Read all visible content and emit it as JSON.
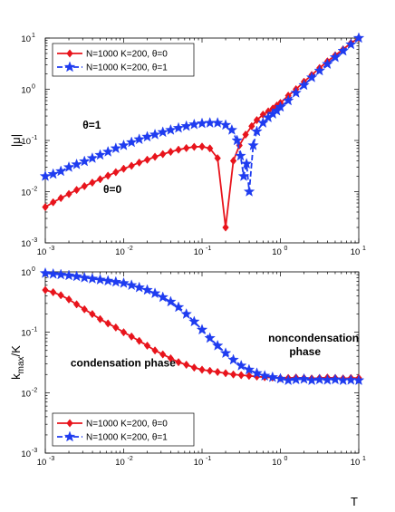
{
  "chart_data": [
    {
      "type": "line",
      "xscale": "log",
      "yscale": "log",
      "xlim": [
        0.001,
        10
      ],
      "ylim": [
        0.001,
        10
      ],
      "xlabel": "",
      "ylabel": "|μ|",
      "grid": false,
      "legend_position": "top-left",
      "x_ticks": [
        {
          "b": "10",
          "e": "-3"
        },
        {
          "b": "10",
          "e": "-2"
        },
        {
          "b": "10",
          "e": "-1"
        },
        {
          "b": "10",
          "e": "0"
        },
        {
          "b": "10",
          "e": "1"
        }
      ],
      "y_ticks": [
        {
          "b": "10",
          "e": "-3"
        },
        {
          "b": "10",
          "e": "-2"
        },
        {
          "b": "10",
          "e": "-1"
        },
        {
          "b": "10",
          "e": "0"
        },
        {
          "b": "10",
          "e": "1"
        }
      ],
      "annotations": [
        {
          "text": "θ=1",
          "x": 0.003,
          "y": 0.17
        },
        {
          "text": "θ=0",
          "x": 0.0055,
          "y": 0.0095
        }
      ],
      "series": [
        {
          "name": "N=1000 K=200, θ=0",
          "color": "#e8141c",
          "marker": "diamond",
          "x": [
            0.001,
            0.00126,
            0.00158,
            0.002,
            0.00251,
            0.00316,
            0.00398,
            0.00501,
            0.00631,
            0.00794,
            0.01,
            0.0126,
            0.0158,
            0.02,
            0.0251,
            0.0316,
            0.0398,
            0.0501,
            0.0631,
            0.0794,
            0.1,
            0.126,
            0.158,
            0.2,
            0.251,
            0.3,
            0.36,
            0.43,
            0.5,
            0.6,
            0.7,
            0.8,
            0.9,
            1.0,
            1.26,
            1.58,
            2.0,
            2.51,
            3.16,
            3.98,
            5.01,
            6.31,
            7.94,
            10
          ],
          "y": [
            0.005,
            0.0062,
            0.0075,
            0.009,
            0.0108,
            0.0128,
            0.015,
            0.0175,
            0.0205,
            0.024,
            0.028,
            0.032,
            0.037,
            0.042,
            0.048,
            0.054,
            0.06,
            0.066,
            0.071,
            0.075,
            0.076,
            0.07,
            0.045,
            0.002,
            0.04,
            0.08,
            0.13,
            0.19,
            0.25,
            0.32,
            0.37,
            0.42,
            0.48,
            0.54,
            0.75,
            1.0,
            1.4,
            1.9,
            2.6,
            3.5,
            4.6,
            6.0,
            8.0,
            10
          ]
        },
        {
          "name": "N=1000 K=200, θ=1",
          "color": "#1f3cf0",
          "marker": "star",
          "x": [
            0.001,
            0.00126,
            0.00158,
            0.002,
            0.00251,
            0.00316,
            0.00398,
            0.00501,
            0.00631,
            0.00794,
            0.01,
            0.0126,
            0.0158,
            0.02,
            0.0251,
            0.0316,
            0.0398,
            0.0501,
            0.0631,
            0.0794,
            0.1,
            0.126,
            0.158,
            0.2,
            0.24,
            0.28,
            0.31,
            0.34,
            0.37,
            0.4,
            0.45,
            0.5,
            0.6,
            0.7,
            0.8,
            0.9,
            1.0,
            1.26,
            1.58,
            2.0,
            2.51,
            3.16,
            3.98,
            5.01,
            6.31,
            7.94,
            10
          ],
          "y": [
            0.02,
            0.022,
            0.025,
            0.03,
            0.034,
            0.039,
            0.045,
            0.052,
            0.06,
            0.07,
            0.08,
            0.092,
            0.105,
            0.118,
            0.13,
            0.145,
            0.16,
            0.175,
            0.19,
            0.205,
            0.215,
            0.22,
            0.22,
            0.2,
            0.16,
            0.1,
            0.05,
            0.02,
            0.035,
            0.01,
            0.08,
            0.15,
            0.22,
            0.28,
            0.33,
            0.38,
            0.45,
            0.6,
            0.85,
            1.2,
            1.7,
            2.3,
            3.1,
            4.2,
            5.6,
            7.5,
            10
          ]
        }
      ]
    },
    {
      "type": "line",
      "xscale": "log",
      "yscale": "log",
      "xlim": [
        0.001,
        10
      ],
      "ylim": [
        0.001,
        1
      ],
      "xlabel": "T",
      "ylabel_main": "k",
      "ylabel_sub": "max",
      "ylabel_tail": "/K",
      "grid": false,
      "legend_position": "bottom-left",
      "x_ticks": [
        {
          "b": "10",
          "e": "-3"
        },
        {
          "b": "10",
          "e": "-2"
        },
        {
          "b": "10",
          "e": "-1"
        },
        {
          "b": "10",
          "e": "0"
        },
        {
          "b": "10",
          "e": "1"
        }
      ],
      "y_ticks": [
        {
          "b": "10",
          "e": "-3"
        },
        {
          "b": "10",
          "e": "-2"
        },
        {
          "b": "10",
          "e": "-1"
        },
        {
          "b": "10",
          "e": "0"
        }
      ],
      "annotations": [
        {
          "text": "noncondensation",
          "x": 0.7,
          "y": 0.07
        },
        {
          "text": "phase",
          "x": 1.3,
          "y": 0.042
        },
        {
          "text": "condensation phase",
          "x": 0.0021,
          "y": 0.027
        }
      ],
      "series": [
        {
          "name": "N=1000 K=200, θ=0",
          "color": "#e8141c",
          "marker": "diamond",
          "x": [
            0.001,
            0.00126,
            0.00158,
            0.002,
            0.00251,
            0.00316,
            0.00398,
            0.00501,
            0.00631,
            0.00794,
            0.01,
            0.0126,
            0.0158,
            0.02,
            0.0251,
            0.0316,
            0.0398,
            0.0501,
            0.0631,
            0.0794,
            0.1,
            0.126,
            0.158,
            0.2,
            0.251,
            0.316,
            0.398,
            0.501,
            0.631,
            0.794,
            1.0,
            1.26,
            1.58,
            2.0,
            2.51,
            3.16,
            3.98,
            5.01,
            6.31,
            7.94,
            10
          ],
          "y": [
            0.5,
            0.46,
            0.41,
            0.35,
            0.29,
            0.24,
            0.2,
            0.165,
            0.14,
            0.12,
            0.1,
            0.085,
            0.072,
            0.06,
            0.05,
            0.043,
            0.037,
            0.032,
            0.029,
            0.026,
            0.024,
            0.023,
            0.022,
            0.021,
            0.02,
            0.0195,
            0.019,
            0.0185,
            0.018,
            0.0178,
            0.0175,
            0.0175,
            0.0178,
            0.0175,
            0.0172,
            0.0175,
            0.0178,
            0.0175,
            0.0172,
            0.0175,
            0.0175
          ]
        },
        {
          "name": "N=1000 K=200, θ=1",
          "color": "#1f3cf0",
          "marker": "star",
          "x": [
            0.001,
            0.00126,
            0.00158,
            0.002,
            0.00251,
            0.00316,
            0.00398,
            0.00501,
            0.00631,
            0.00794,
            0.01,
            0.0126,
            0.0158,
            0.02,
            0.0251,
            0.0316,
            0.0398,
            0.0501,
            0.0631,
            0.0794,
            0.1,
            0.126,
            0.158,
            0.2,
            0.251,
            0.316,
            0.398,
            0.501,
            0.631,
            0.794,
            1.0,
            1.26,
            1.58,
            2.0,
            2.51,
            3.16,
            3.98,
            5.01,
            6.31,
            7.94,
            10
          ],
          "y": [
            0.95,
            0.92,
            0.9,
            0.87,
            0.84,
            0.8,
            0.77,
            0.74,
            0.71,
            0.68,
            0.65,
            0.6,
            0.55,
            0.5,
            0.44,
            0.38,
            0.32,
            0.26,
            0.2,
            0.15,
            0.11,
            0.08,
            0.06,
            0.045,
            0.035,
            0.028,
            0.024,
            0.021,
            0.019,
            0.018,
            0.017,
            0.016,
            0.0165,
            0.0168,
            0.016,
            0.0165,
            0.0162,
            0.0165,
            0.016,
            0.0162,
            0.016
          ]
        }
      ]
    }
  ]
}
